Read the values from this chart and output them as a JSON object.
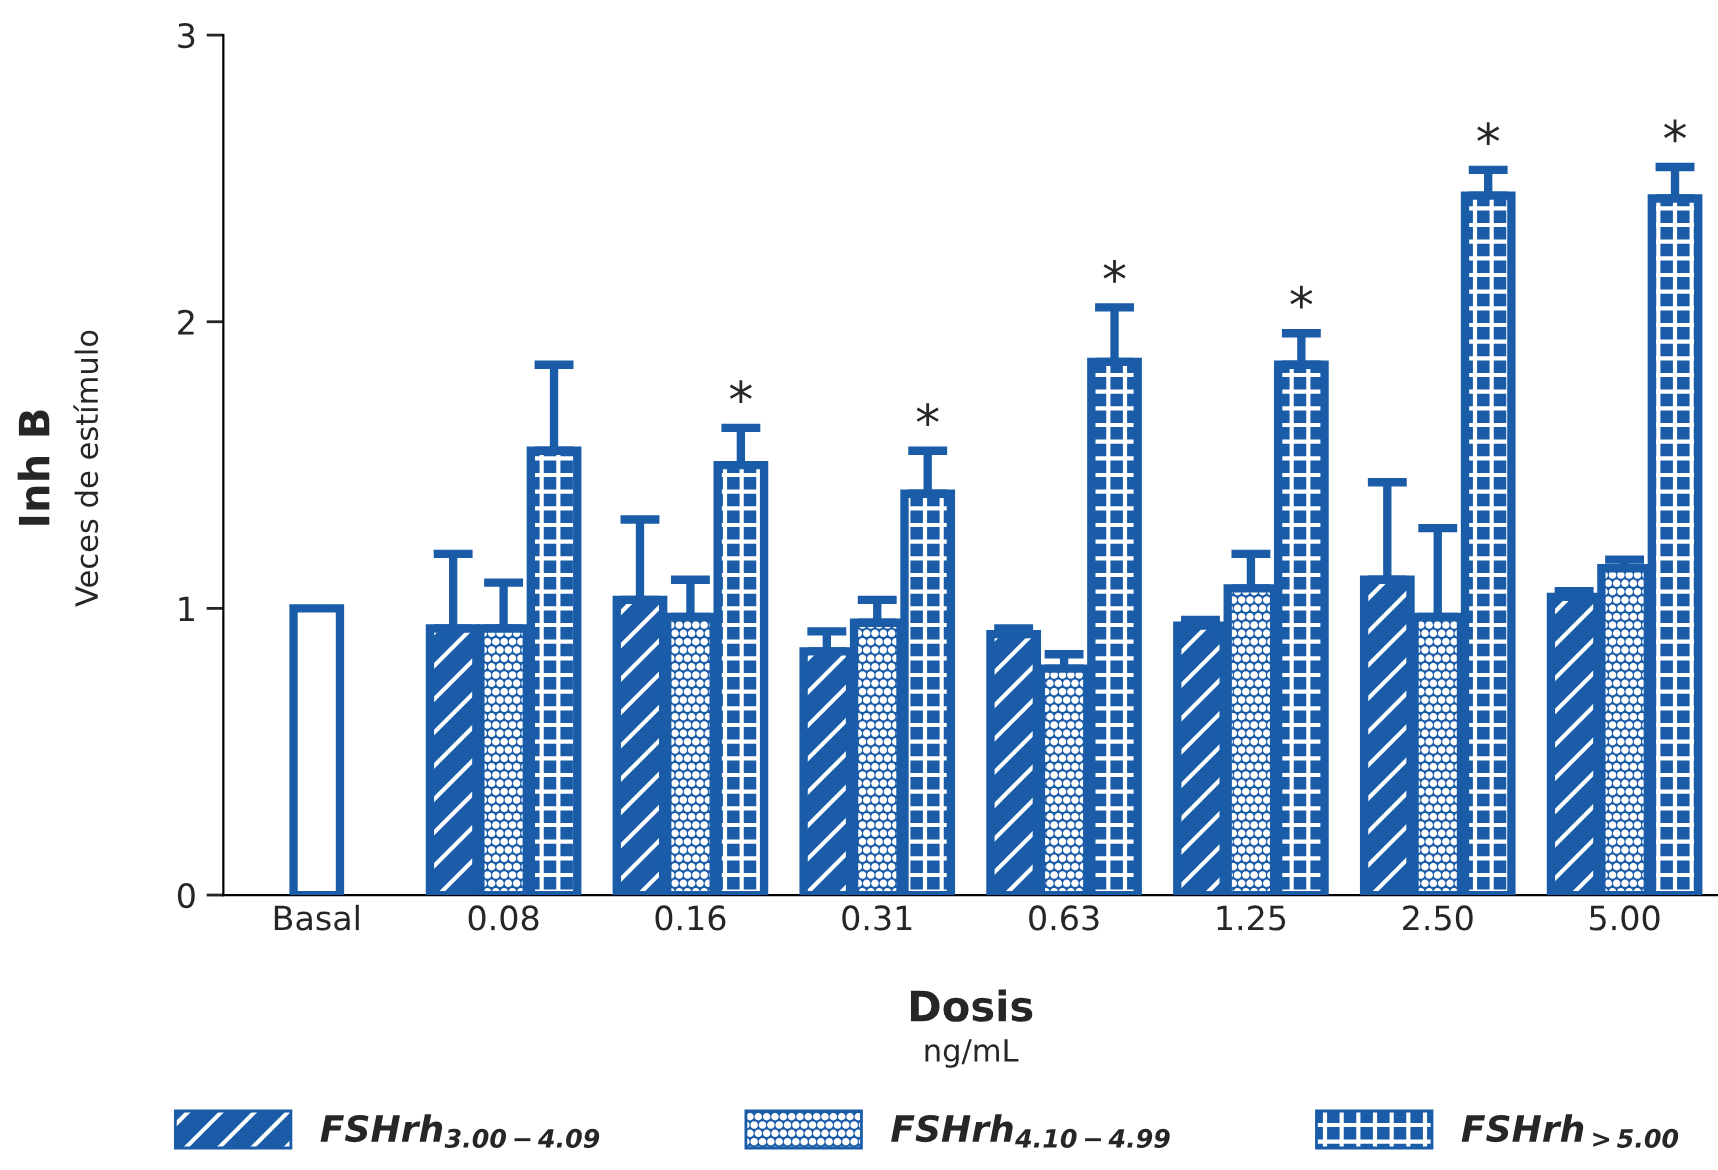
{
  "chart_data": {
    "type": "bar",
    "categories": [
      "Basal",
      "0.08",
      "0.16",
      "0.31",
      "0.63",
      "1.25",
      "2.50",
      "5.00"
    ],
    "series": [
      {
        "color": "#ffffff",
        "values": [
          1,
          null,
          null,
          null,
          null,
          null,
          null,
          null
        ]
      },
      {
        "name": "FSHrh$_{3.00−4.09}$",
        "color": "#1a5ca8",
        "values": [
          null,
          0.93,
          1.03,
          0.85,
          0.91,
          0.94,
          1.1,
          1.04
        ],
        "errors": [
          null,
          [
            0.93,
            1.19
          ],
          [
            1.03,
            1.31
          ],
          [
            0.85,
            0.92
          ],
          [
            0.91,
            0.93
          ],
          [
            0.94,
            0.96
          ],
          [
            1.1,
            1.44
          ],
          [
            1.04,
            1.06
          ]
        ]
      },
      {
        "name": "FSHrh$_{4.10−4.99}$",
        "color": "#1a5ca8",
        "values": [
          null,
          0.93,
          0.97,
          0.95,
          0.79,
          1.07,
          0.97,
          1.14
        ],
        "errors": [
          null,
          [
            0.93,
            1.09
          ],
          [
            0.97,
            1.1
          ],
          [
            0.95,
            1.03
          ],
          [
            0.79,
            0.84
          ],
          [
            1.07,
            1.19
          ],
          [
            0.97,
            1.28
          ],
          [
            1.14,
            1.17
          ]
        ]
      },
      {
        "name": "FSHrh$_{>5.00}$",
        "color": "#1a5ca8",
        "values": [
          null,
          1.55,
          1.5,
          1.4,
          1.86,
          1.85,
          2.44,
          2.43
        ],
        "errors": [
          null,
          [
            1.55,
            1.85
          ],
          [
            1.5,
            1.63
          ],
          [
            1.4,
            1.55
          ],
          [
            1.86,
            2.05
          ],
          [
            1.85,
            1.96
          ],
          [
            2.44,
            2.53
          ],
          [
            2.43,
            2.54
          ]
        ],
        "value_labels": [
          null,
          null,
          "*",
          "*",
          "*",
          "*",
          "*",
          "*"
        ]
      }
    ],
    "ylabel": "Inh B\nVeces de estímulo",
    "xlabel": "Dosis\nng/mL",
    "ylim": [
      0,
      3
    ],
    "yticks": [
      0,
      1,
      2,
      3
    ],
    "grid": false,
    "legend": "bottom"
  }
}
